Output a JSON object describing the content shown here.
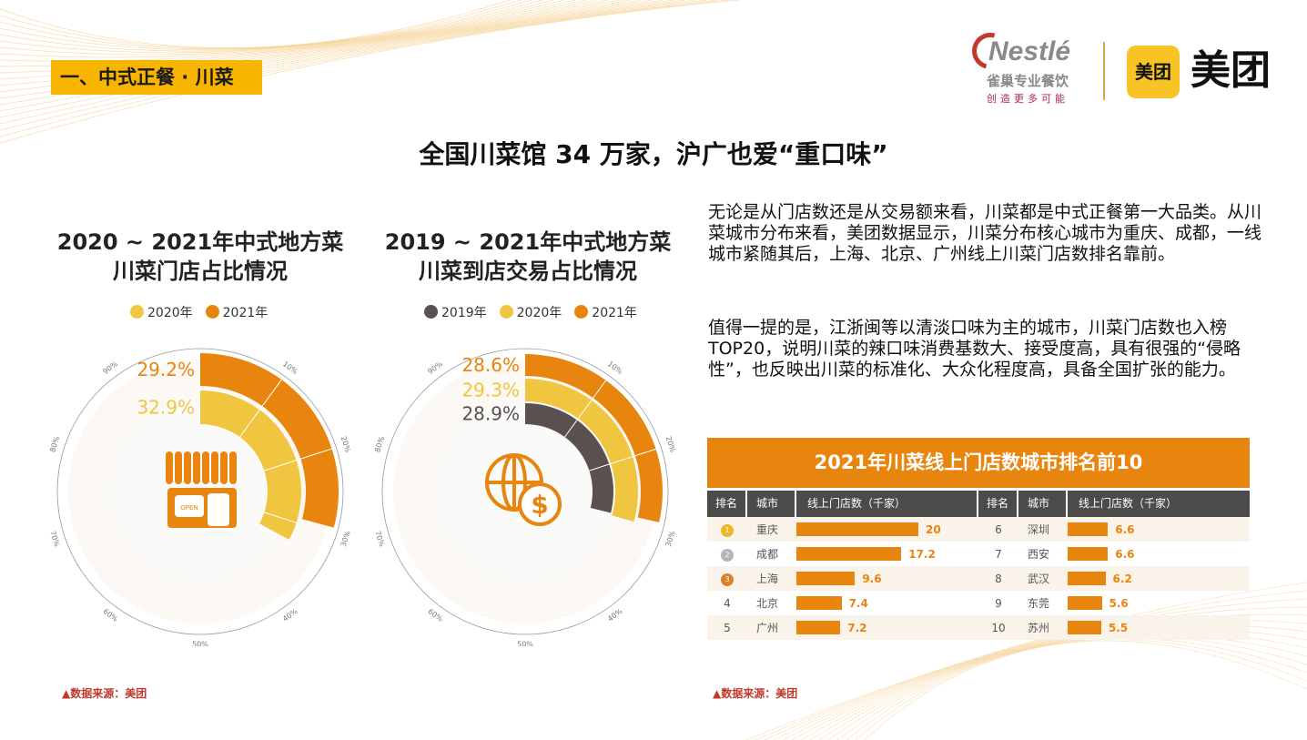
{
  "section_tag": "一、中式正餐 · 川菜",
  "logos": {
    "nestle_name": "Nestlé",
    "nestle_cn": "雀巢专业餐饮",
    "nestle_slogan": "创造更多可能",
    "meituan_icon": "美团",
    "meituan_text": "美团"
  },
  "page_title": "全国川菜馆 34 万家，沪广也爱“重口味”",
  "paragraphs": [
    "无论是从门店数还是从交易额来看，川菜都是中式正餐第一大品类。从川菜城市分布来看，美团数据显示，川菜分布核心城市为重庆、成都，一线城市紧随其后，上海、北京、广州线上川菜门店数排名靠前。",
    "值得一提的是，江浙闽等以清淡口味为主的城市，川菜门店数也入榜 TOP20，说明川菜的辣口味消费基数大、接受度高，具有很强的“侵略性”，也反映出川菜的标准化、大众化程度高，具备全国扩张的能力。"
  ],
  "source_left": "▲数据来源：美团",
  "source_right": "▲数据来源：美团",
  "colors": {
    "orange": "#e8850f",
    "yellow": "#f0c53f",
    "gray": "#5a5050"
  },
  "chart_data": [
    {
      "type": "radial-bar",
      "title": "2020 ~ 2021年中式地方菜",
      "subtitle": "川菜门店占比情况",
      "icon": "storefront-open-icon",
      "axis_ticks": [
        "10%",
        "20%",
        "30%",
        "40%",
        "50%",
        "60%",
        "70%",
        "80%",
        "90%"
      ],
      "range": [
        0,
        100
      ],
      "series": [
        {
          "name": "2021年",
          "value": 29.2,
          "label": "29.2%",
          "color": "#e8850f"
        },
        {
          "name": "2020年",
          "value": 32.9,
          "label": "32.9%",
          "color": "#f0c53f"
        }
      ],
      "legend": [
        {
          "name": "2020年",
          "color": "#f0c53f"
        },
        {
          "name": "2021年",
          "color": "#e8850f"
        }
      ]
    },
    {
      "type": "radial-bar",
      "title": "2019 ~ 2021年中式地方菜",
      "subtitle": "川菜到店交易占比情况",
      "icon": "globe-dollar-icon",
      "axis_ticks": [
        "10%",
        "20%",
        "30%",
        "40%",
        "50%",
        "60%",
        "70%",
        "80%",
        "90%"
      ],
      "range": [
        0,
        100
      ],
      "series": [
        {
          "name": "2021年",
          "value": 28.6,
          "label": "28.6%",
          "color": "#e8850f"
        },
        {
          "name": "2020年",
          "value": 29.3,
          "label": "29.3%",
          "color": "#f0c53f"
        },
        {
          "name": "2019年",
          "value": 28.9,
          "label": "28.9%",
          "color": "#5a5050"
        }
      ],
      "legend": [
        {
          "name": "2019年",
          "color": "#5a5050"
        },
        {
          "name": "2020年",
          "color": "#f0c53f"
        },
        {
          "name": "2021年",
          "color": "#e8850f"
        }
      ]
    },
    {
      "type": "table",
      "title": "2021年川菜线上门店数城市排名前10",
      "headers": [
        "排名",
        "城市",
        "线上门店数（千家）"
      ],
      "rows": [
        {
          "rank": "1",
          "city": "重庆",
          "value": 20,
          "label": "20"
        },
        {
          "rank": "2",
          "city": "成都",
          "value": 17.2,
          "label": "17.2"
        },
        {
          "rank": "3",
          "city": "上海",
          "value": 9.6,
          "label": "9.6"
        },
        {
          "rank": "4",
          "city": "北京",
          "value": 7.4,
          "label": "7.4"
        },
        {
          "rank": "5",
          "city": "广州",
          "value": 7.2,
          "label": "7.2"
        },
        {
          "rank": "6",
          "city": "深圳",
          "value": 6.6,
          "label": "6.6"
        },
        {
          "rank": "7",
          "city": "西安",
          "value": 6.6,
          "label": "6.6"
        },
        {
          "rank": "8",
          "city": "武汉",
          "value": 6.2,
          "label": "6.2"
        },
        {
          "rank": "9",
          "city": "东莞",
          "value": 5.6,
          "label": "5.6"
        },
        {
          "rank": "10",
          "city": "苏州",
          "value": 5.5,
          "label": "5.5"
        }
      ]
    }
  ]
}
